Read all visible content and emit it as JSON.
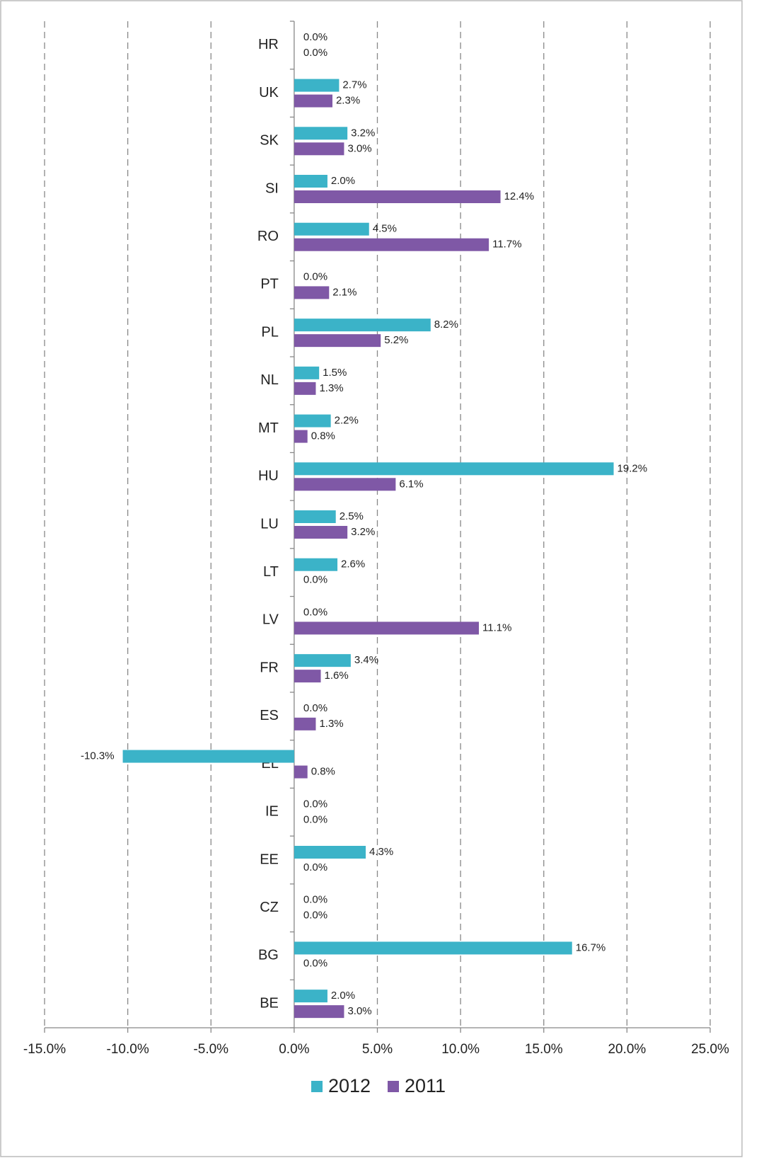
{
  "chart_data": {
    "type": "bar",
    "orientation": "horizontal",
    "categories": [
      "HR",
      "UK",
      "SK",
      "SI",
      "RO",
      "PT",
      "PL",
      "NL",
      "MT",
      "HU",
      "LU",
      "LT",
      "LV",
      "FR",
      "ES",
      "EL",
      "IE",
      "EE",
      "CZ",
      "BG",
      "BE"
    ],
    "series": [
      {
        "name": "2012",
        "color": "#3bb3c8",
        "values": [
          0,
          2.7,
          3.2,
          2.0,
          4.5,
          0,
          8.2,
          1.5,
          2.2,
          19.2,
          2.5,
          2.6,
          0,
          3.4,
          0,
          -10.3,
          0,
          4.3,
          0,
          16.7,
          2.0
        ],
        "value_labels": [
          "0.0%",
          "2.7%",
          "3.2%",
          "2.0%",
          "4.5%",
          "0.0%",
          "8.2%",
          "1.5%",
          "2.2%",
          "19.2%",
          "2.5%",
          "2.6%",
          "0.0%",
          "3.4%",
          "0.0%",
          "-10.3%",
          "0.0%",
          "4.3%",
          "0.0%",
          "16.7%",
          "2.0%"
        ]
      },
      {
        "name": "2011",
        "color": "#7f58a6",
        "values": [
          0,
          2.3,
          3.0,
          12.4,
          11.7,
          2.1,
          5.2,
          1.3,
          0.8,
          6.1,
          3.2,
          0,
          11.1,
          1.6,
          1.3,
          0.8,
          0,
          0,
          0,
          0,
          3.0
        ],
        "value_labels": [
          "0.0%",
          "2.3%",
          "3.0%",
          "12.4%",
          "11.7%",
          "2.1%",
          "5.2%",
          "1.3%",
          "0.8%",
          "6.1%",
          "3.2%",
          "0.0%",
          "11.1%",
          "1.6%",
          "1.3%",
          "0.8%",
          "0.0%",
          "0.0%",
          "0.0%",
          "0.0%",
          "3.0%"
        ]
      }
    ],
    "xlim": [
      -15,
      25
    ],
    "xticks": [
      {
        "value": -15,
        "label": "-15.0%"
      },
      {
        "value": -10,
        "label": "-10.0%"
      },
      {
        "value": -5,
        "label": "-5.0%"
      },
      {
        "value": 0,
        "label": "0.0%"
      },
      {
        "value": 5,
        "label": "5.0%"
      },
      {
        "value": 10,
        "label": "10.0%"
      },
      {
        "value": 15,
        "label": "15.0%"
      },
      {
        "value": 20,
        "label": "20.0%"
      },
      {
        "value": 25,
        "label": "25.0%"
      }
    ],
    "grid": true,
    "legend": "bottom"
  }
}
